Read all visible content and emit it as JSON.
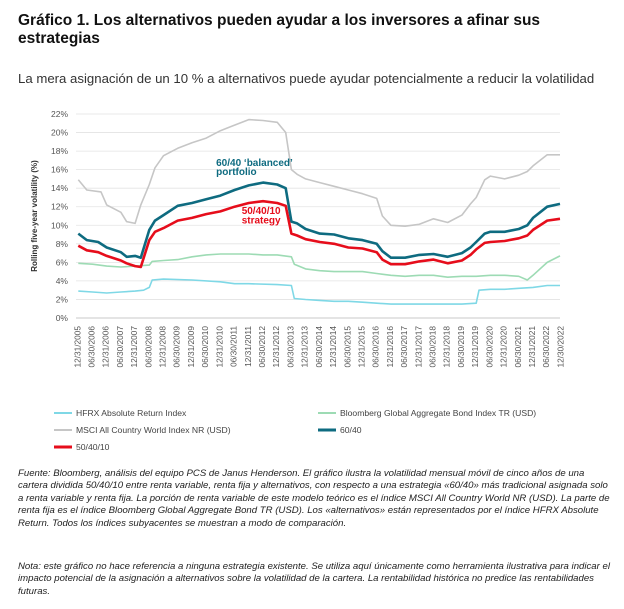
{
  "title": "Gráfico 1. Los alternativos pueden ayudar a los inversores a afinar sus estrategias",
  "subtitle": "La mera asignación de un 10 % a alternativos puede ayudar potencialmente a reducir la volatilidad",
  "source": "Fuente: Bloomberg, análisis del equipo PCS de Janus Henderson. El gráfico ilustra la volatilidad mensual móvil de cinco años de una cartera dividida 50/40/10 entre renta variable, renta fija y alternativos, con respecto a una estrategia «60/40» más tradicional asignada solo a renta variable y renta fija. La porción de renta variable de este modelo teórico es el índice MSCI All Country World NR (USD). La parte de renta fija es el índice Bloomberg Global Aggregate Bond TR (USD). Los «alternativos» están representados por el índice HFRX Absolute Return. Todos los índices subyacentes se muestran a modo de comparación.",
  "note": "Nota: este gráfico no hace referencia a ninguna estrategia existente. Se utiliza aquí únicamente como herramienta ilustrativa para indicar el impacto potencial de la asignación a alternativos sobre la volatilidad de la cartera. La rentabilidad histórica no predice las rentabilidades futuras.",
  "colors": {
    "hfrx": "#7fd8e6",
    "bloomberg": "#9ddbb4",
    "msci": "#c6c6c6",
    "sixty_forty": "#0e6b80",
    "fifty_forty_ten": "#e60d1b",
    "annotation_sixty_forty": "#0e6b80",
    "annotation_fifty_forty_ten": "#e60d1b"
  },
  "chart_data": {
    "type": "line",
    "title": "",
    "xlabel": "",
    "ylabel": "Rolling five-year volatility (%)",
    "ylim": [
      0,
      22
    ],
    "yticks": [
      0,
      2,
      4,
      6,
      8,
      10,
      12,
      14,
      16,
      18,
      20,
      22
    ],
    "ytick_labels": [
      "0%",
      "2%",
      "4%",
      "6%",
      "8%",
      "10%",
      "12%",
      "14%",
      "16%",
      "18%",
      "20%",
      "22%"
    ],
    "xlim": [
      2005.92,
      2022.95
    ],
    "x_tick_labels": [
      "12/31/2005",
      "06/30/2006",
      "12/31/2006",
      "06/30/2007",
      "12/31/2007",
      "06/30/2008",
      "12/31/2008",
      "06/30/2009",
      "12/31/2009",
      "06/30/2010",
      "12/31/2010",
      "06/30/2011",
      "12/31/2011",
      "06/30/2012",
      "12/31/2012",
      "06/30/2013",
      "12/31/2013",
      "06/30/2014",
      "12/31/2014",
      "06/30/2015",
      "12/31/2015",
      "06/30/2016",
      "12/31/2016",
      "06/30/2017",
      "12/31/2017",
      "06/30/2018",
      "12/31/2018",
      "06/30/2019",
      "12/31/2019",
      "06/30/2020",
      "12/31/2020",
      "06/30/2021",
      "12/31/2021",
      "06/30/2022",
      "12/30/2022"
    ],
    "x_tick_values": [
      2006.0,
      2006.5,
      2007.0,
      2007.5,
      2008.0,
      2008.5,
      2009.0,
      2009.5,
      2010.0,
      2010.5,
      2011.0,
      2011.5,
      2012.0,
      2012.5,
      2013.0,
      2013.5,
      2014.0,
      2014.5,
      2015.0,
      2015.5,
      2016.0,
      2016.5,
      2017.0,
      2017.5,
      2018.0,
      2018.5,
      2019.0,
      2019.5,
      2020.0,
      2020.5,
      2021.0,
      2021.5,
      2022.0,
      2022.5,
      2023.0
    ],
    "annotations": [
      {
        "text": "60/40 ‘balanced’",
        "series": "60/40",
        "x": 2010.85,
        "y": 16.4
      },
      {
        "text": "portfolio",
        "series": "60/40",
        "x": 2010.85,
        "y": 15.4
      },
      {
        "text": "50/40/10",
        "series": "50/40/10",
        "x": 2011.75,
        "y": 11.2
      },
      {
        "text": "strategy",
        "series": "50/40/10",
        "x": 2011.75,
        "y": 10.2
      }
    ],
    "series": [
      {
        "name": "HFRX Absolute Return Index",
        "key": "hfrx",
        "x": [
          2006.0,
          2006.5,
          2007.0,
          2007.5,
          2008.0,
          2008.3,
          2008.5,
          2008.6,
          2009.0,
          2010.0,
          2011.0,
          2011.5,
          2012.0,
          2013.0,
          2013.5,
          2013.6,
          2014.0,
          2014.5,
          2015.0,
          2015.5,
          2016.0,
          2016.5,
          2017.0,
          2017.5,
          2018.0,
          2018.5,
          2019.0,
          2019.5,
          2020.0,
          2020.1,
          2020.5,
          2021.0,
          2021.5,
          2022.0,
          2022.5,
          2022.95
        ],
        "y": [
          2.9,
          2.8,
          2.7,
          2.8,
          2.9,
          3.0,
          3.3,
          4.1,
          4.2,
          4.1,
          3.9,
          3.7,
          3.7,
          3.6,
          3.5,
          2.1,
          2.0,
          1.9,
          1.8,
          1.8,
          1.7,
          1.6,
          1.5,
          1.5,
          1.5,
          1.5,
          1.5,
          1.5,
          1.6,
          3.0,
          3.1,
          3.1,
          3.2,
          3.3,
          3.5,
          3.5
        ]
      },
      {
        "name": "Bloomberg Global Aggregate Bond Index TR (USD)",
        "key": "bloomberg",
        "x": [
          2006.0,
          2006.5,
          2007.0,
          2007.5,
          2008.0,
          2008.5,
          2008.6,
          2009.0,
          2009.5,
          2010.0,
          2010.5,
          2011.0,
          2011.5,
          2012.0,
          2012.5,
          2013.0,
          2013.5,
          2013.6,
          2014.0,
          2014.5,
          2015.0,
          2015.5,
          2016.0,
          2016.5,
          2017.0,
          2017.5,
          2018.0,
          2018.5,
          2019.0,
          2019.5,
          2020.0,
          2020.5,
          2021.0,
          2021.5,
          2021.8,
          2022.0,
          2022.5,
          2022.95
        ],
        "y": [
          5.9,
          5.8,
          5.6,
          5.5,
          5.6,
          5.7,
          6.1,
          6.2,
          6.3,
          6.6,
          6.8,
          6.9,
          6.9,
          6.9,
          6.8,
          6.8,
          6.6,
          5.8,
          5.3,
          5.1,
          5.0,
          5.0,
          5.0,
          4.8,
          4.6,
          4.5,
          4.6,
          4.6,
          4.4,
          4.5,
          4.5,
          4.6,
          4.6,
          4.5,
          4.1,
          4.6,
          6.0,
          6.7
        ]
      },
      {
        "name": "MSCI All Country World Index NR (USD)",
        "key": "msci",
        "x": [
          2006.0,
          2006.3,
          2006.8,
          2007.0,
          2007.5,
          2007.7,
          2008.0,
          2008.2,
          2008.5,
          2008.7,
          2009.0,
          2009.5,
          2010.0,
          2010.5,
          2011.0,
          2011.5,
          2012.0,
          2012.5,
          2013.0,
          2013.3,
          2013.5,
          2013.7,
          2014.0,
          2014.5,
          2015.0,
          2015.5,
          2016.0,
          2016.5,
          2016.7,
          2017.0,
          2017.5,
          2018.0,
          2018.5,
          2019.0,
          2019.5,
          2019.8,
          2020.0,
          2020.3,
          2020.5,
          2021.0,
          2021.5,
          2021.8,
          2022.0,
          2022.5,
          2022.95
        ],
        "y": [
          14.9,
          13.8,
          13.6,
          12.2,
          11.4,
          10.4,
          10.2,
          12.2,
          14.4,
          16.2,
          17.5,
          18.3,
          18.9,
          19.4,
          20.2,
          20.8,
          21.4,
          21.3,
          21.1,
          20.0,
          16.0,
          15.5,
          15.0,
          14.6,
          14.2,
          13.8,
          13.4,
          12.9,
          11.0,
          10.0,
          9.9,
          10.1,
          10.7,
          10.3,
          11.1,
          12.3,
          13.0,
          14.9,
          15.3,
          15.0,
          15.4,
          15.8,
          16.4,
          17.6,
          17.6
        ]
      },
      {
        "name": "60/40",
        "key": "sixty_forty",
        "x": [
          2006.0,
          2006.3,
          2006.7,
          2007.0,
          2007.5,
          2007.7,
          2008.0,
          2008.2,
          2008.5,
          2008.7,
          2009.0,
          2009.5,
          2010.0,
          2010.5,
          2011.0,
          2011.5,
          2012.0,
          2012.5,
          2013.0,
          2013.3,
          2013.5,
          2013.7,
          2014.0,
          2014.5,
          2015.0,
          2015.5,
          2016.0,
          2016.5,
          2016.7,
          2017.0,
          2017.5,
          2018.0,
          2018.5,
          2019.0,
          2019.5,
          2019.8,
          2020.0,
          2020.3,
          2020.5,
          2021.0,
          2021.5,
          2021.8,
          2022.0,
          2022.5,
          2022.95
        ],
        "y": [
          9.1,
          8.4,
          8.2,
          7.6,
          7.1,
          6.6,
          6.7,
          6.5,
          9.5,
          10.5,
          11.1,
          12.1,
          12.4,
          12.8,
          13.2,
          13.8,
          14.3,
          14.6,
          14.4,
          14.0,
          10.4,
          10.2,
          9.6,
          9.1,
          9.0,
          8.6,
          8.4,
          8.0,
          7.2,
          6.5,
          6.5,
          6.8,
          6.9,
          6.6,
          7.0,
          7.6,
          8.2,
          9.1,
          9.3,
          9.3,
          9.6,
          10.0,
          10.8,
          12.0,
          12.3
        ]
      },
      {
        "name": "50/40/10",
        "key": "fifty_forty_ten",
        "x": [
          2006.0,
          2006.3,
          2006.7,
          2007.0,
          2007.5,
          2007.7,
          2008.0,
          2008.2,
          2008.5,
          2008.7,
          2009.0,
          2009.5,
          2010.0,
          2010.5,
          2011.0,
          2011.5,
          2012.0,
          2012.5,
          2013.0,
          2013.3,
          2013.5,
          2013.7,
          2014.0,
          2014.5,
          2015.0,
          2015.5,
          2016.0,
          2016.5,
          2016.7,
          2017.0,
          2017.5,
          2018.0,
          2018.5,
          2019.0,
          2019.5,
          2019.8,
          2020.0,
          2020.3,
          2020.5,
          2021.0,
          2021.5,
          2021.8,
          2022.0,
          2022.5,
          2022.95
        ],
        "y": [
          7.8,
          7.3,
          7.1,
          6.7,
          6.2,
          5.9,
          5.6,
          5.5,
          8.4,
          9.3,
          9.7,
          10.5,
          10.8,
          11.2,
          11.5,
          12.0,
          12.4,
          12.6,
          12.4,
          12.1,
          9.1,
          8.9,
          8.5,
          8.2,
          8.0,
          7.6,
          7.5,
          7.1,
          6.3,
          5.8,
          5.8,
          6.1,
          6.3,
          5.9,
          6.2,
          6.8,
          7.4,
          8.1,
          8.2,
          8.3,
          8.6,
          8.9,
          9.5,
          10.5,
          10.7
        ]
      }
    ],
    "legend": {
      "placement": "bottom",
      "entries": [
        {
          "label": "HFRX Absolute Return Index",
          "key": "hfrx"
        },
        {
          "label": "Bloomberg Global Aggregate Bond Index TR (USD)",
          "key": "bloomberg"
        },
        {
          "label": "MSCI All Country World Index NR (USD)",
          "key": "msci"
        },
        {
          "label": "60/40",
          "key": "sixty_forty"
        },
        {
          "label": "50/40/10",
          "key": "fifty_forty_ten"
        }
      ]
    }
  }
}
